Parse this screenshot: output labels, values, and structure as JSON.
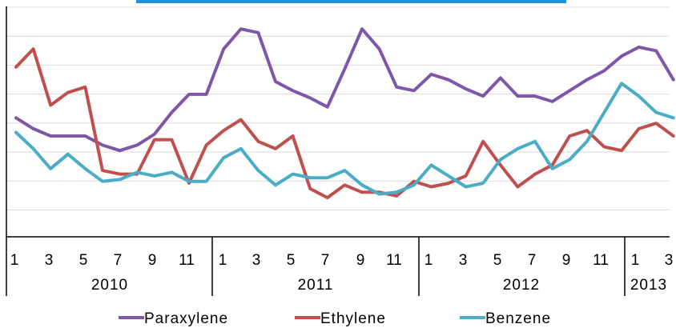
{
  "chart_data": {
    "type": "line",
    "title": "",
    "xlabel": "",
    "ylabel": "",
    "ylim": [
      0,
      10
    ],
    "grid": true,
    "legend_position": "bottom",
    "x": [
      1,
      2,
      3,
      4,
      5,
      6,
      7,
      8,
      9,
      10,
      11,
      12,
      13,
      14,
      15,
      16,
      17,
      18,
      19,
      20,
      21,
      22,
      23,
      24,
      25,
      26,
      27,
      28,
      29,
      30,
      31,
      32,
      33,
      34,
      35,
      36,
      37,
      38,
      39
    ],
    "month_ticks": [
      "1",
      "3",
      "5",
      "7",
      "9",
      "11",
      "1",
      "3",
      "5",
      "7",
      "9",
      "11",
      "1",
      "3",
      "5",
      "7",
      "9",
      "11",
      "1",
      "3"
    ],
    "years": [
      "2010",
      "2011",
      "2012",
      "2013"
    ],
    "series": [
      {
        "name": "Paraxylene",
        "color": "#7F57A8",
        "values": [
          3.9,
          3.3,
          2.9,
          2.9,
          2.9,
          2.4,
          2.1,
          2.4,
          3.0,
          4.2,
          5.2,
          5.2,
          7.7,
          8.8,
          8.6,
          5.9,
          5.4,
          5.0,
          4.5,
          6.6,
          8.8,
          7.7,
          5.6,
          5.4,
          6.3,
          6.0,
          5.5,
          5.1,
          6.1,
          5.1,
          5.1,
          4.8,
          5.4,
          6.0,
          6.5,
          7.3,
          7.8,
          7.6,
          6.0
        ]
      },
      {
        "name": "Ethylene",
        "color": "#C0504D",
        "values": [
          6.7,
          7.7,
          4.6,
          5.3,
          5.6,
          1.0,
          0.8,
          0.8,
          2.7,
          2.7,
          0.3,
          2.4,
          3.2,
          3.8,
          2.6,
          2.2,
          2.9,
          0.0,
          -0.5,
          0.2,
          -0.2,
          -0.2,
          -0.4,
          0.4,
          0.1,
          0.3,
          0.7,
          2.6,
          1.3,
          0.1,
          0.8,
          1.3,
          2.9,
          3.2,
          2.3,
          2.1,
          3.3,
          3.6,
          2.9
        ]
      },
      {
        "name": "Benzene",
        "color": "#4BACC6",
        "values": [
          3.1,
          2.2,
          1.1,
          1.9,
          1.1,
          0.4,
          0.5,
          0.9,
          0.7,
          0.9,
          0.4,
          0.4,
          1.7,
          2.2,
          1.0,
          0.2,
          0.8,
          0.6,
          0.6,
          1.0,
          0.2,
          -0.3,
          -0.2,
          0.2,
          1.3,
          0.7,
          0.1,
          0.3,
          1.6,
          2.2,
          2.6,
          1.1,
          1.6,
          2.6,
          4.2,
          5.8,
          5.1,
          4.2,
          3.9
        ]
      }
    ]
  }
}
